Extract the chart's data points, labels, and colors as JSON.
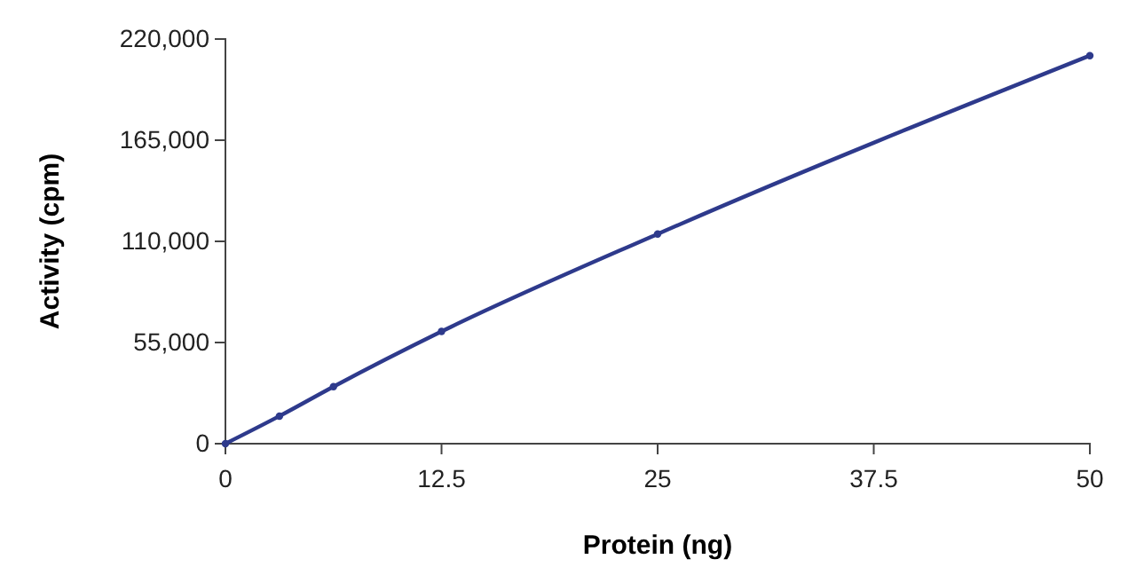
{
  "chart_data": {
    "type": "line",
    "xlabel": "Protein (ng)",
    "ylabel": "Activity (cpm)",
    "x": [
      0,
      3.125,
      6.25,
      12.5,
      25,
      50
    ],
    "series": [
      {
        "color": "#2e3a8c",
        "values": [
          0,
          15000,
          31000,
          61000,
          114000,
          211000
        ]
      }
    ],
    "xlim": [
      0,
      50
    ],
    "xticks": [
      0,
      12.5,
      25,
      37.5,
      50
    ],
    "ylim": [
      0,
      220000
    ],
    "yticks": [
      {
        "value": 0,
        "label": "0"
      },
      {
        "value": 55000,
        "label": "55,000"
      },
      {
        "value": 110000,
        "label": "110,000"
      },
      {
        "value": 165000,
        "label": "165,000"
      },
      {
        "value": 220000,
        "label": "220,000"
      }
    ],
    "marker": "circle",
    "line_style": "solid",
    "grid": false
  }
}
